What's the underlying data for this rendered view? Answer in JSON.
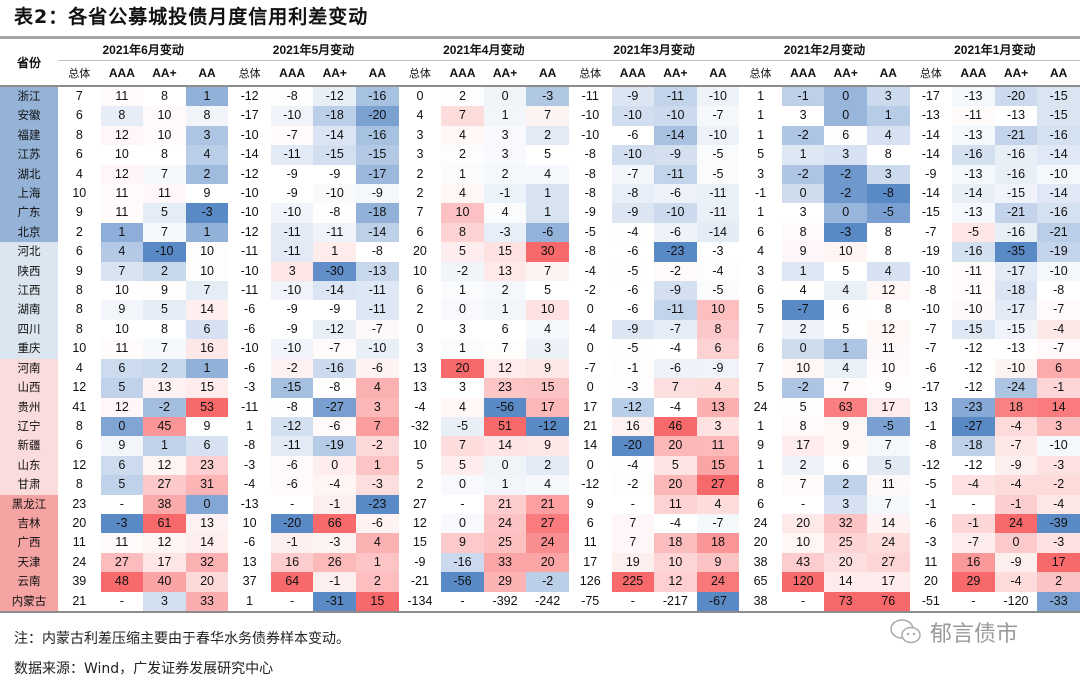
{
  "title": "表2：各省公募城投债月度信用利差变动",
  "header": {
    "province_label": "省份",
    "months": [
      "2021年6月变动",
      "2021年5月变动",
      "2021年4月变动",
      "2021年3月变动",
      "2021年2月变动",
      "2021年1月变动"
    ],
    "sub_columns": [
      "总体",
      "AAA",
      "AA+",
      "AA"
    ]
  },
  "colors": {
    "low": "#5a8ac6",
    "mid": "#ffffff",
    "high": "#f8696b"
  },
  "province_groups": [
    {
      "color": "#95b3d7",
      "count": 8
    },
    {
      "color": "#dce6f1",
      "count": 6
    },
    {
      "color": "#fbdcdc",
      "count": 7
    },
    {
      "color": "#f5a3a3",
      "count": 6
    }
  ],
  "rows": [
    {
      "province": "浙江",
      "values": [
        [
          "7",
          "11",
          "8",
          "1"
        ],
        [
          "-12",
          "-8",
          "-12",
          "-16"
        ],
        [
          "0",
          "2",
          "0",
          "-3"
        ],
        [
          "-11",
          "-9",
          "-11",
          "-10"
        ],
        [
          "1",
          "-1",
          "0",
          "3"
        ],
        [
          "-17",
          "-13",
          "-20",
          "-15"
        ]
      ]
    },
    {
      "province": "安徽",
      "values": [
        [
          "6",
          "8",
          "10",
          "8"
        ],
        [
          "-17",
          "-10",
          "-18",
          "-20"
        ],
        [
          "4",
          "7",
          "1",
          "7"
        ],
        [
          "-10",
          "-10",
          "-10",
          "-7"
        ],
        [
          "1",
          "3",
          "0",
          "1"
        ],
        [
          "-13",
          "-11",
          "-13",
          "-15"
        ]
      ]
    },
    {
      "province": "福建",
      "values": [
        [
          "8",
          "12",
          "10",
          "3"
        ],
        [
          "-10",
          "-7",
          "-14",
          "-16"
        ],
        [
          "3",
          "4",
          "3",
          "2"
        ],
        [
          "-10",
          "-6",
          "-14",
          "-10"
        ],
        [
          "1",
          "-2",
          "6",
          "4"
        ],
        [
          "-14",
          "-13",
          "-21",
          "-16"
        ]
      ]
    },
    {
      "province": "江苏",
      "values": [
        [
          "6",
          "10",
          "8",
          "4"
        ],
        [
          "-14",
          "-11",
          "-15",
          "-15"
        ],
        [
          "3",
          "2",
          "3",
          "5"
        ],
        [
          "-8",
          "-10",
          "-9",
          "-5"
        ],
        [
          "5",
          "1",
          "3",
          "8"
        ],
        [
          "-14",
          "-16",
          "-16",
          "-14"
        ]
      ]
    },
    {
      "province": "湖北",
      "values": [
        [
          "4",
          "12",
          "7",
          "2"
        ],
        [
          "-12",
          "-9",
          "-9",
          "-17"
        ],
        [
          "2",
          "1",
          "2",
          "4"
        ],
        [
          "-8",
          "-7",
          "-11",
          "-5"
        ],
        [
          "3",
          "-2",
          "-2",
          "3"
        ],
        [
          "-9",
          "-13",
          "-16",
          "-10"
        ]
      ]
    },
    {
      "province": "上海",
      "values": [
        [
          "10",
          "11",
          "11",
          "9"
        ],
        [
          "-10",
          "-9",
          "-10",
          "-9"
        ],
        [
          "2",
          "4",
          "-1",
          "1"
        ],
        [
          "-8",
          "-8",
          "-6",
          "-11"
        ],
        [
          "-1",
          "0",
          "-2",
          "-8"
        ],
        [
          "-14",
          "-14",
          "-15",
          "-14"
        ]
      ]
    },
    {
      "province": "广东",
      "values": [
        [
          "9",
          "11",
          "5",
          "-3"
        ],
        [
          "-10",
          "-10",
          "-8",
          "-18"
        ],
        [
          "7",
          "10",
          "4",
          "1"
        ],
        [
          "-9",
          "-9",
          "-10",
          "-11"
        ],
        [
          "1",
          "3",
          "0",
          "-5"
        ],
        [
          "-15",
          "-13",
          "-21",
          "-16"
        ]
      ]
    },
    {
      "province": "北京",
      "values": [
        [
          "2",
          "1",
          "7",
          "1"
        ],
        [
          "-12",
          "-11",
          "-11",
          "-14"
        ],
        [
          "6",
          "8",
          "-3",
          "-6"
        ],
        [
          "-5",
          "-4",
          "-6",
          "-14"
        ],
        [
          "6",
          "8",
          "-3",
          "8"
        ],
        [
          "-7",
          "-5",
          "-16",
          "-21"
        ]
      ]
    },
    {
      "province": "河北",
      "values": [
        [
          "6",
          "4",
          "-10",
          "10"
        ],
        [
          "-11",
          "-11",
          "1",
          "-8"
        ],
        [
          "20",
          "5",
          "15",
          "30"
        ],
        [
          "-8",
          "-6",
          "-23",
          "-3"
        ],
        [
          "4",
          "9",
          "10",
          "8"
        ],
        [
          "-19",
          "-16",
          "-35",
          "-19"
        ]
      ]
    },
    {
      "province": "陕西",
      "values": [
        [
          "9",
          "7",
          "2",
          "10"
        ],
        [
          "-10",
          "3",
          "-30",
          "-13"
        ],
        [
          "10",
          "-2",
          "13",
          "7"
        ],
        [
          "-4",
          "-5",
          "-2",
          "-4"
        ],
        [
          "3",
          "1",
          "5",
          "4"
        ],
        [
          "-10",
          "-11",
          "-17",
          "-10"
        ]
      ]
    },
    {
      "province": "江西",
      "values": [
        [
          "8",
          "10",
          "9",
          "7"
        ],
        [
          "-11",
          "-10",
          "-14",
          "-11"
        ],
        [
          "6",
          "1",
          "2",
          "5"
        ],
        [
          "-2",
          "-6",
          "-9",
          "-5"
        ],
        [
          "6",
          "4",
          "4",
          "12"
        ],
        [
          "-8",
          "-11",
          "-18",
          "-8"
        ]
      ]
    },
    {
      "province": "湖南",
      "values": [
        [
          "8",
          "9",
          "5",
          "14"
        ],
        [
          "-6",
          "-9",
          "-9",
          "-11"
        ],
        [
          "2",
          "0",
          "1",
          "10"
        ],
        [
          "0",
          "-6",
          "-11",
          "10"
        ],
        [
          "5",
          "-7",
          "6",
          "8"
        ],
        [
          "-10",
          "-10",
          "-17",
          "-7"
        ]
      ]
    },
    {
      "province": "四川",
      "values": [
        [
          "8",
          "10",
          "8",
          "6"
        ],
        [
          "-6",
          "-9",
          "-12",
          "-7"
        ],
        [
          "0",
          "3",
          "6",
          "4"
        ],
        [
          "-4",
          "-9",
          "-7",
          "8"
        ],
        [
          "7",
          "2",
          "5",
          "12"
        ],
        [
          "-7",
          "-15",
          "-15",
          "-4"
        ]
      ]
    },
    {
      "province": "重庆",
      "values": [
        [
          "10",
          "11",
          "7",
          "16"
        ],
        [
          "-10",
          "-10",
          "-7",
          "-10"
        ],
        [
          "3",
          "1",
          "7",
          "3"
        ],
        [
          "0",
          "-5",
          "-4",
          "6"
        ],
        [
          "6",
          "0",
          "1",
          "11"
        ],
        [
          "-7",
          "-12",
          "-13",
          "-7"
        ]
      ]
    },
    {
      "province": "河南",
      "values": [
        [
          "4",
          "6",
          "2",
          "1"
        ],
        [
          "-6",
          "-2",
          "-16",
          "-6"
        ],
        [
          "13",
          "20",
          "12",
          "9"
        ],
        [
          "-7",
          "-1",
          "-6",
          "-9"
        ],
        [
          "7",
          "10",
          "4",
          "10"
        ],
        [
          "-6",
          "-12",
          "-10",
          "6"
        ]
      ]
    },
    {
      "province": "山西",
      "values": [
        [
          "12",
          "5",
          "13",
          "15"
        ],
        [
          "-3",
          "-15",
          "-8",
          "4"
        ],
        [
          "13",
          "3",
          "23",
          "15"
        ],
        [
          "0",
          "-3",
          "7",
          "4"
        ],
        [
          "5",
          "-2",
          "7",
          "9"
        ],
        [
          "-17",
          "-12",
          "-24",
          "-1"
        ]
      ]
    },
    {
      "province": "贵州",
      "values": [
        [
          "41",
          "12",
          "-2",
          "53"
        ],
        [
          "-11",
          "-8",
          "-27",
          "3"
        ],
        [
          "-4",
          "4",
          "-56",
          "17"
        ],
        [
          "17",
          "-12",
          "-4",
          "13"
        ],
        [
          "24",
          "5",
          "63",
          "17"
        ],
        [
          "13",
          "-23",
          "18",
          "14"
        ]
      ]
    },
    {
      "province": "辽宁",
      "values": [
        [
          "8",
          "0",
          "45",
          "9"
        ],
        [
          "1",
          "-12",
          "-6",
          "7"
        ],
        [
          "-32",
          "-5",
          "51",
          "-12"
        ],
        [
          "21",
          "16",
          "46",
          "3"
        ],
        [
          "1",
          "8",
          "9",
          "-5"
        ],
        [
          "-1",
          "-27",
          "-4",
          "3"
        ]
      ]
    },
    {
      "province": "新疆",
      "values": [
        [
          "6",
          "9",
          "1",
          "6"
        ],
        [
          "-8",
          "-11",
          "-19",
          "-2"
        ],
        [
          "10",
          "7",
          "14",
          "9"
        ],
        [
          "14",
          "-20",
          "20",
          "11"
        ],
        [
          "9",
          "17",
          "9",
          "7"
        ],
        [
          "-8",
          "-18",
          "-7",
          "-10"
        ]
      ]
    },
    {
      "province": "山东",
      "values": [
        [
          "12",
          "6",
          "12",
          "23"
        ],
        [
          "-3",
          "-6",
          "0",
          "1"
        ],
        [
          "5",
          "5",
          "0",
          "2"
        ],
        [
          "0",
          "-4",
          "5",
          "15"
        ],
        [
          "1",
          "2",
          "6",
          "5"
        ],
        [
          "-12",
          "-12",
          "-9",
          "-3"
        ]
      ]
    },
    {
      "province": "甘肃",
      "values": [
        [
          "8",
          "5",
          "27",
          "31"
        ],
        [
          "-4",
          "-6",
          "-4",
          "-3"
        ],
        [
          "2",
          "0",
          "1",
          "4"
        ],
        [
          "-12",
          "-2",
          "20",
          "27"
        ],
        [
          "8",
          "7",
          "2",
          "11"
        ],
        [
          "-5",
          "-4",
          "-4",
          "-2"
        ]
      ]
    },
    {
      "province": "黑龙江",
      "values": [
        [
          "23",
          "-",
          "38",
          "0"
        ],
        [
          "-13",
          "-",
          "-1",
          "-23"
        ],
        [
          "27",
          "-",
          "21",
          "21"
        ],
        [
          "9",
          "-",
          "11",
          "4"
        ],
        [
          "6",
          "-",
          "3",
          "7"
        ],
        [
          "-1",
          "-",
          "-1",
          "-4"
        ]
      ]
    },
    {
      "province": "吉林",
      "values": [
        [
          "20",
          "-3",
          "61",
          "13"
        ],
        [
          "10",
          "-20",
          "66",
          "-6"
        ],
        [
          "12",
          "0",
          "24",
          "27"
        ],
        [
          "6",
          "7",
          "-4",
          "-7"
        ],
        [
          "24",
          "20",
          "32",
          "14"
        ],
        [
          "-6",
          "-1",
          "24",
          "-39"
        ]
      ]
    },
    {
      "province": "广西",
      "values": [
        [
          "11",
          "11",
          "12",
          "14"
        ],
        [
          "-6",
          "-1",
          "-3",
          "4"
        ],
        [
          "15",
          "9",
          "25",
          "24"
        ],
        [
          "11",
          "7",
          "18",
          "18"
        ],
        [
          "20",
          "10",
          "25",
          "24"
        ],
        [
          "-3",
          "-7",
          "0",
          "-3"
        ]
      ]
    },
    {
      "province": "天津",
      "values": [
        [
          "24",
          "27",
          "17",
          "32"
        ],
        [
          "13",
          "16",
          "26",
          "1"
        ],
        [
          "-9",
          "-16",
          "33",
          "20"
        ],
        [
          "17",
          "19",
          "10",
          "9"
        ],
        [
          "38",
          "43",
          "20",
          "27"
        ],
        [
          "11",
          "16",
          "-9",
          "17"
        ]
      ]
    },
    {
      "province": "云南",
      "values": [
        [
          "39",
          "48",
          "40",
          "20"
        ],
        [
          "37",
          "64",
          "-1",
          "2"
        ],
        [
          "-21",
          "-56",
          "29",
          "-2"
        ],
        [
          "126",
          "225",
          "12",
          "24"
        ],
        [
          "65",
          "120",
          "14",
          "17"
        ],
        [
          "20",
          "29",
          "-4",
          "2"
        ]
      ]
    },
    {
      "province": "内蒙古",
      "values": [
        [
          "21",
          "-",
          "3",
          "33"
        ],
        [
          "1",
          "-",
          "-31",
          "15"
        ],
        [
          "-134",
          "-",
          "-392",
          "-242"
        ],
        [
          "-75",
          "-",
          "-217",
          "-67"
        ],
        [
          "38",
          "-",
          "73",
          "76"
        ],
        [
          "-51",
          "-",
          "-120",
          "-33"
        ]
      ]
    }
  ],
  "footer": {
    "note": "注：内蒙古利差压缩主要由于春华水务债券样本变动。",
    "source": "数据来源：Wind，广发证券发展研究中心",
    "watermark": "郁言债市"
  }
}
